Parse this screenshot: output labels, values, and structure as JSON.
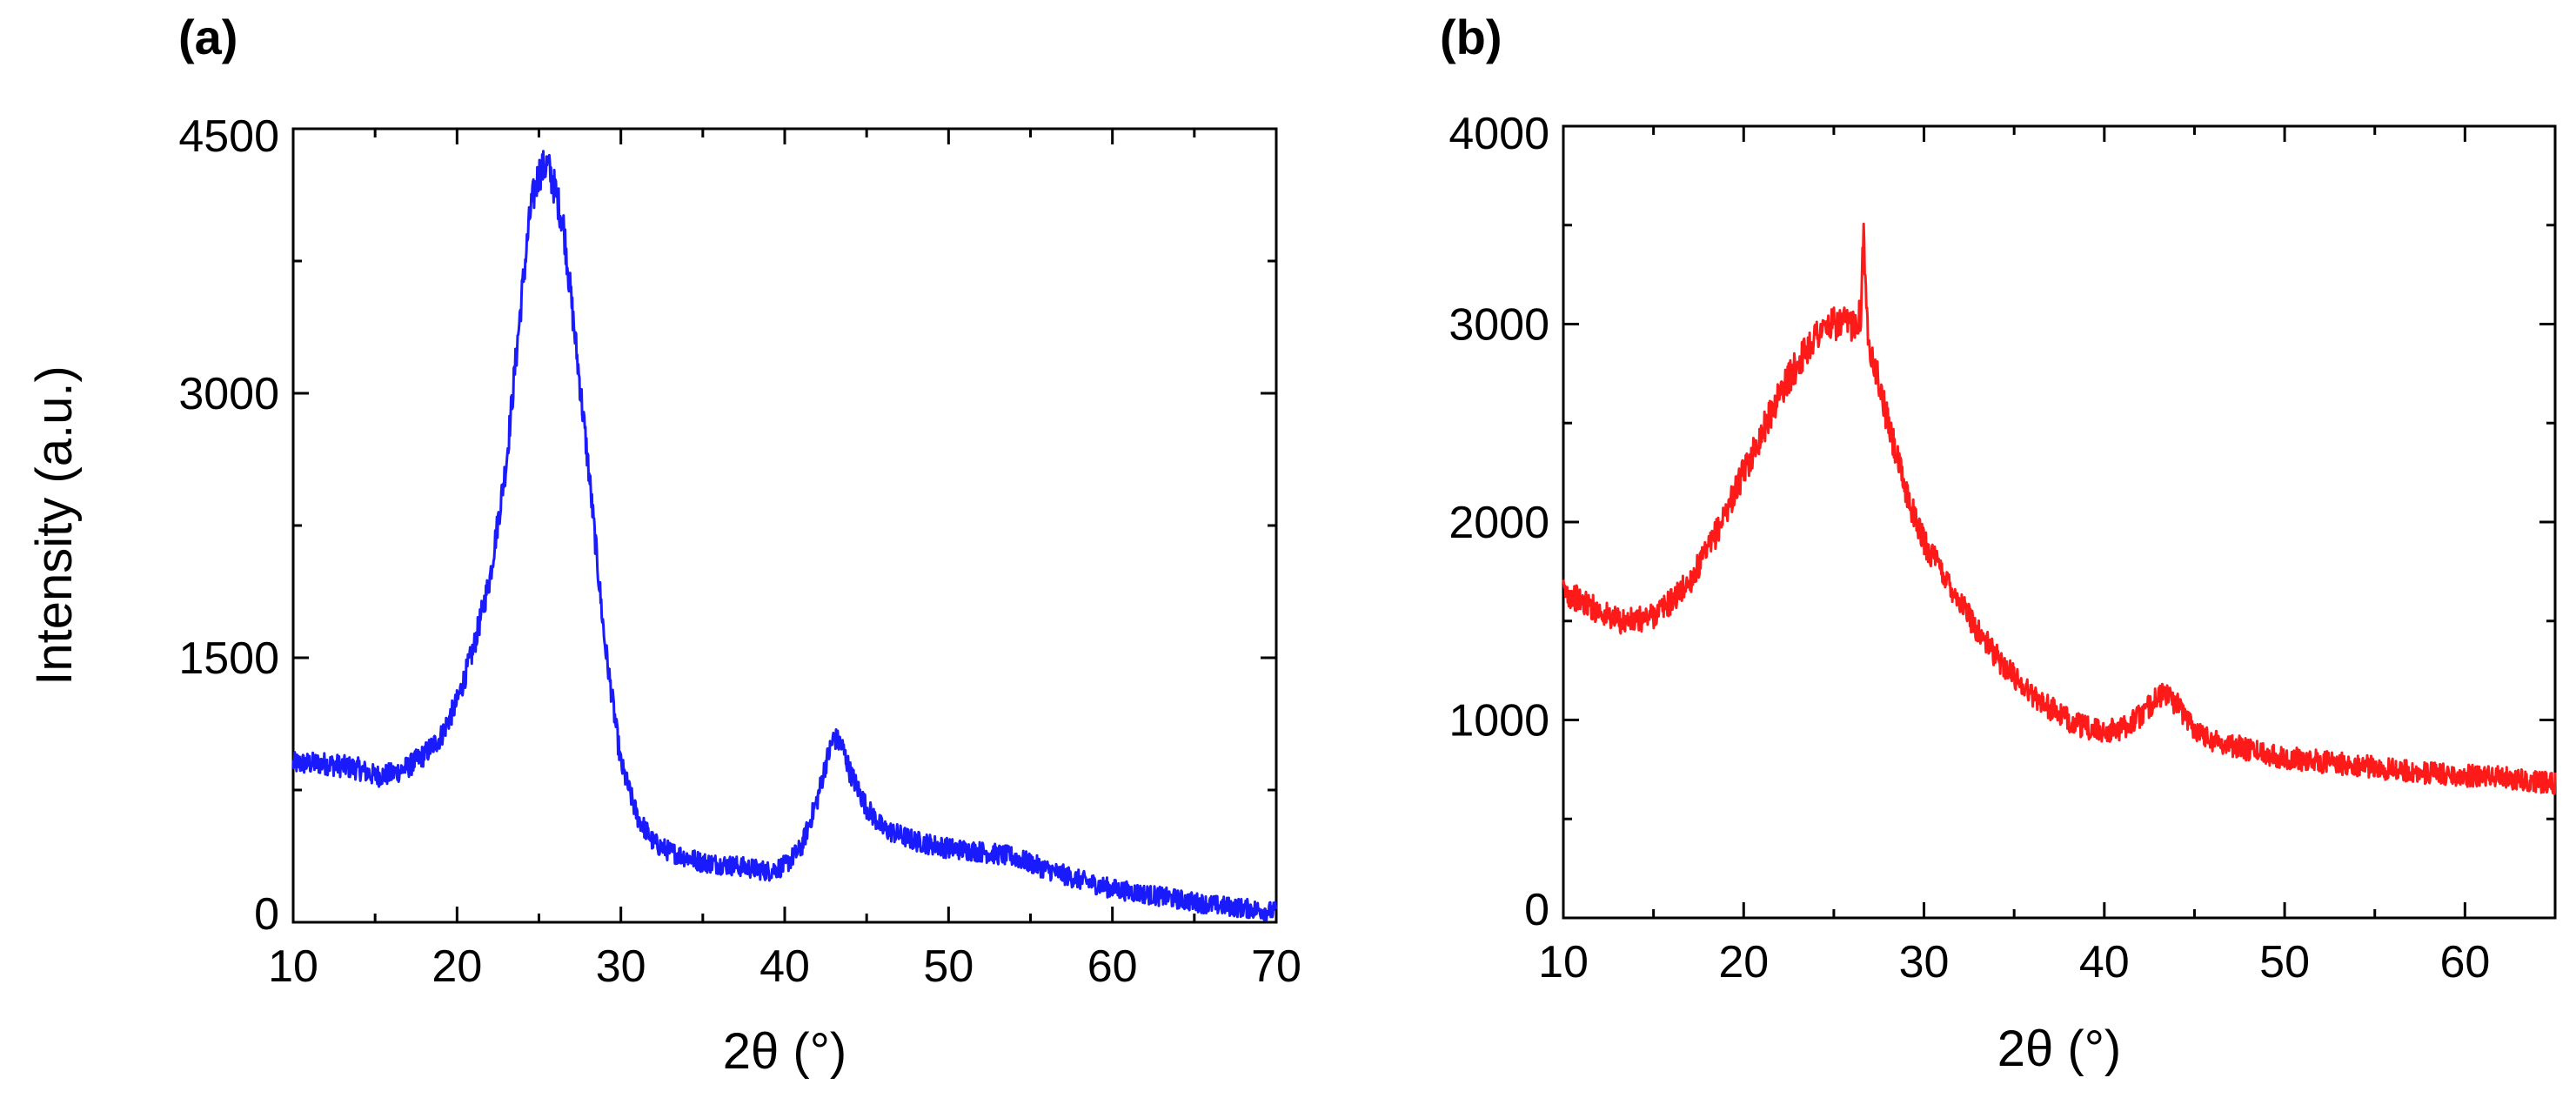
{
  "chart_data": [
    {
      "type": "line",
      "panel_label": "(a)",
      "xlabel": "2θ  (°)",
      "ylabel": "Intensity  (a.u.)",
      "xlim": [
        10,
        70
      ],
      "ylim": [
        0,
        4500
      ],
      "x_ticks": [
        "10",
        "20",
        "30",
        "40",
        "50",
        "60",
        "70"
      ],
      "y_ticks": [
        "0",
        "1500",
        "3000",
        "4500"
      ],
      "series": [
        {
          "name": "a",
          "color": "#1a1aff",
          "x": [
            10,
            12,
            14,
            15,
            16,
            17,
            18,
            19,
            20,
            21,
            22,
            23,
            24,
            24.5,
            25,
            25.5,
            26,
            26.5,
            27,
            28,
            29,
            30,
            31,
            32,
            33,
            35,
            37,
            39,
            40,
            41,
            42,
            42.5,
            43,
            43.5,
            44,
            45,
            46,
            48,
            50,
            52,
            54,
            56,
            58,
            60,
            62,
            64,
            66,
            68,
            70
          ],
          "y": [
            900,
            900,
            870,
            830,
            840,
            880,
            950,
            1050,
            1250,
            1550,
            1950,
            2600,
            3600,
            4050,
            4250,
            4300,
            4150,
            3950,
            3500,
            2600,
            1600,
            900,
            600,
            450,
            400,
            340,
            320,
            290,
            320,
            420,
            700,
            900,
            1050,
            1000,
            850,
            650,
            530,
            460,
            420,
            400,
            370,
            300,
            240,
            190,
            160,
            130,
            100,
            80,
            60
          ]
        }
      ]
    },
    {
      "type": "line",
      "panel_label": "(b)",
      "xlabel": "2θ  (°)",
      "ylabel": "",
      "xlim": [
        10,
        65
      ],
      "ylim": [
        0,
        4000
      ],
      "x_ticks": [
        "10",
        "20",
        "30",
        "40",
        "50",
        "60"
      ],
      "y_ticks": [
        "0",
        "1000",
        "2000",
        "3000",
        "4000"
      ],
      "series": [
        {
          "name": "b",
          "color": "#ff1a1a",
          "x": [
            10,
            11,
            12,
            13,
            14,
            15,
            16,
            17,
            18,
            19,
            20,
            21,
            22,
            23,
            24,
            25,
            26,
            26.5,
            26.65,
            26.8,
            27,
            28,
            29,
            30,
            31,
            32,
            33,
            34,
            35,
            36,
            37,
            38,
            39,
            40,
            41,
            42,
            43,
            43.5,
            44,
            45,
            46,
            48,
            50,
            52,
            54,
            56,
            58,
            60,
            62,
            64,
            65
          ],
          "y": [
            1650,
            1600,
            1550,
            1500,
            1500,
            1530,
            1600,
            1700,
            1850,
            2050,
            2250,
            2450,
            2650,
            2800,
            2950,
            3000,
            3000,
            3050,
            3500,
            3050,
            2900,
            2500,
            2150,
            1900,
            1750,
            1600,
            1450,
            1320,
            1220,
            1130,
            1060,
            1000,
            960,
            940,
            960,
            1020,
            1120,
            1130,
            1080,
            960,
            900,
            850,
            810,
            790,
            770,
            750,
            730,
            720,
            710,
            690,
            680
          ]
        }
      ]
    }
  ]
}
